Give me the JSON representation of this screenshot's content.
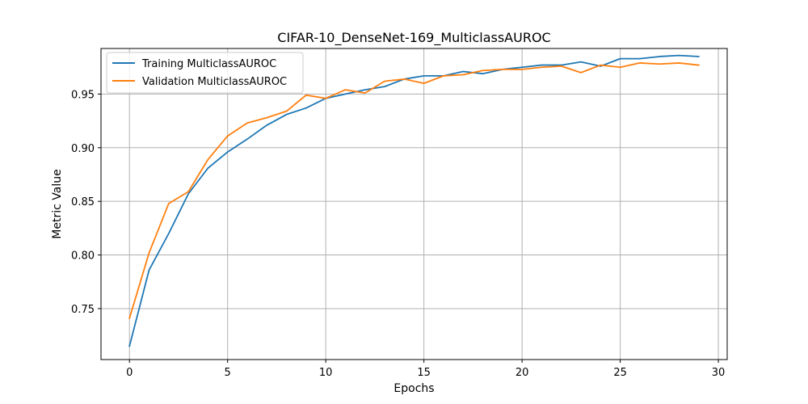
{
  "chart_data": {
    "type": "line",
    "title": "CIFAR-10_DenseNet-169_MulticlassAUROC",
    "xlabel": "Epochs",
    "ylabel": "Metric Value",
    "xlim": [
      -1.45,
      30.45
    ],
    "ylim": [
      0.7025,
      0.9925
    ],
    "xticks": [
      0,
      5,
      10,
      15,
      20,
      25,
      30
    ],
    "yticks": [
      0.75,
      0.8,
      0.85,
      0.9,
      0.95
    ],
    "ytick_labels": [
      "0.75",
      "0.80",
      "0.85",
      "0.90",
      "0.95"
    ],
    "grid": true,
    "legend_position": "top-left",
    "x": [
      0,
      1,
      2,
      3,
      4,
      5,
      6,
      7,
      8,
      9,
      10,
      11,
      12,
      13,
      14,
      15,
      16,
      17,
      18,
      19,
      20,
      21,
      22,
      23,
      24,
      25,
      26,
      27,
      28,
      29
    ],
    "series": [
      {
        "name": "Training MulticlassAUROC",
        "color": "#1f77b4",
        "values": [
          0.715,
          0.786,
          0.82,
          0.857,
          0.881,
          0.896,
          0.908,
          0.921,
          0.931,
          0.937,
          0.946,
          0.95,
          0.954,
          0.957,
          0.964,
          0.967,
          0.967,
          0.971,
          0.969,
          0.973,
          0.975,
          0.977,
          0.977,
          0.98,
          0.976,
          0.983,
          0.983,
          0.985,
          0.986,
          0.985
        ]
      },
      {
        "name": "Validation MulticlassAUROC",
        "color": "#ff7f0e",
        "values": [
          0.741,
          0.802,
          0.848,
          0.859,
          0.889,
          0.911,
          0.923,
          0.928,
          0.934,
          0.949,
          0.946,
          0.954,
          0.951,
          0.962,
          0.964,
          0.96,
          0.967,
          0.968,
          0.972,
          0.973,
          0.973,
          0.975,
          0.976,
          0.97,
          0.977,
          0.975,
          0.979,
          0.978,
          0.979,
          0.977
        ]
      }
    ]
  }
}
